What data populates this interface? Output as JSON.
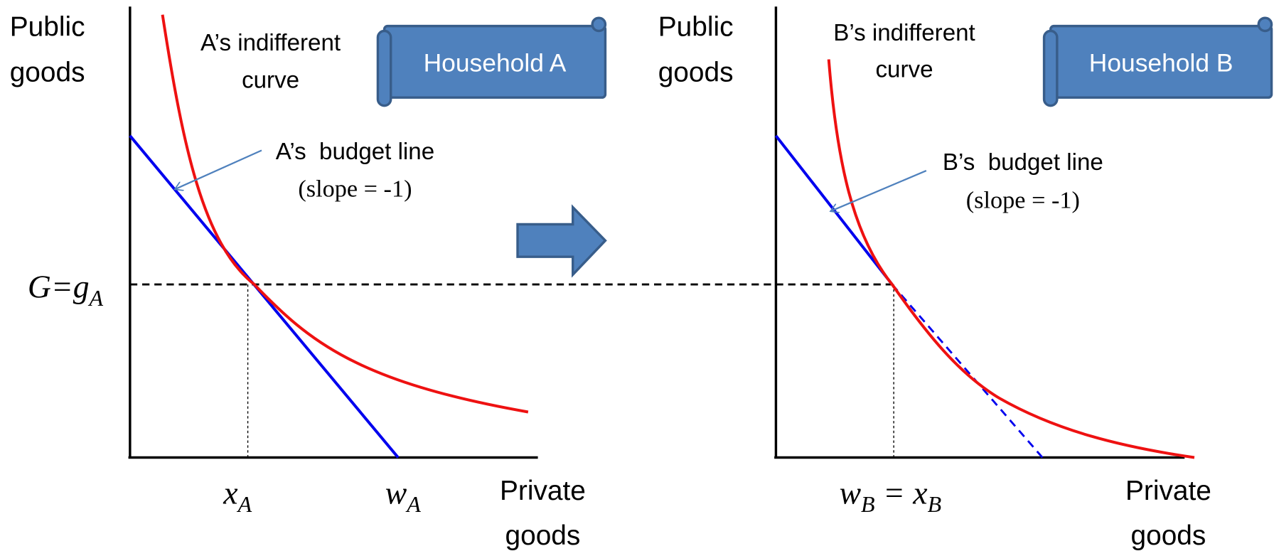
{
  "left": {
    "y_axis_label": [
      "Public",
      "goods"
    ],
    "x_axis_label": [
      "Private",
      "goods"
    ],
    "curve_label": [
      "A’s indifferent",
      "curve"
    ],
    "banner": "Household A",
    "budget_label": "A’s  budget line",
    "slope_label": "(slope = -1)",
    "g_label": [
      "G=g",
      "A"
    ],
    "x_label": [
      "x",
      "A"
    ],
    "w_label": [
      "w",
      "A"
    ]
  },
  "right": {
    "y_axis_label": [
      "Public",
      "goods"
    ],
    "x_axis_label": [
      "Private",
      "goods"
    ],
    "curve_label": [
      "B’s indifferent",
      "curve"
    ],
    "banner": "Household B",
    "budget_label": "B’s  budget line",
    "slope_label": "(slope = -1)",
    "wx_label": [
      "w",
      "B",
      " = x",
      "B"
    ]
  }
}
